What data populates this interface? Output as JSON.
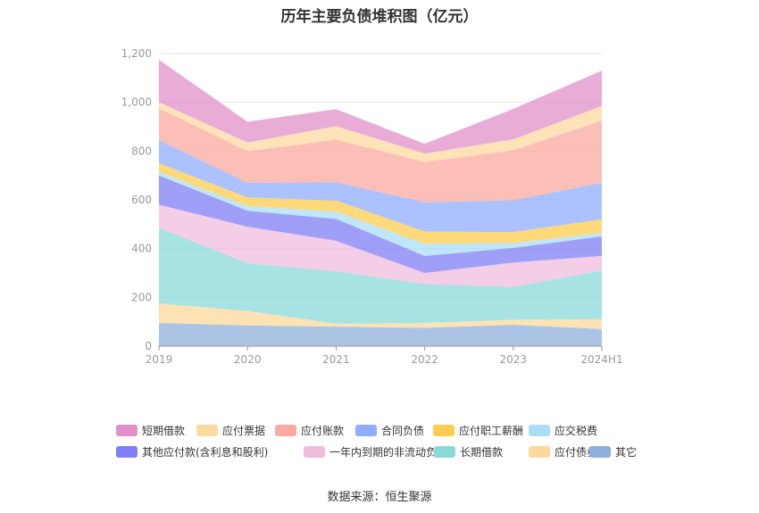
{
  "chart_data": {
    "type": "area",
    "stacked": true,
    "title": "历年主要负债堆积图（亿元）",
    "source": "数据来源：恒生聚源",
    "categories": [
      "2019",
      "2020",
      "2021",
      "2022",
      "2023",
      "2024H1"
    ],
    "yticks": [
      "0",
      "200",
      "400",
      "600",
      "800",
      "1,000",
      "1,200"
    ],
    "ylim": [
      0,
      1200
    ],
    "grid": true,
    "legend_position": "bottom",
    "series": [
      {
        "name": "其它",
        "color": "#8fafdc",
        "values": [
          95,
          85,
          80,
          75,
          88,
          70
        ]
      },
      {
        "name": "应付债券",
        "color": "#fcd99b",
        "values": [
          80,
          60,
          12,
          20,
          20,
          40
        ]
      },
      {
        "name": "长期借款",
        "color": "#8ad9d9",
        "values": [
          310,
          195,
          215,
          160,
          135,
          200
        ]
      },
      {
        "name": "一年内到期的非流动负债",
        "color": "#f0bcdd",
        "values": [
          95,
          150,
          125,
          45,
          100,
          60
        ]
      },
      {
        "name": "其他应付款(含利息和股利)",
        "color": "#7f7ff5",
        "values": [
          120,
          65,
          90,
          70,
          60,
          80
        ]
      },
      {
        "name": "应交税费",
        "color": "#a9def7",
        "values": [
          15,
          20,
          30,
          50,
          20,
          15
        ]
      },
      {
        "name": "应付职工薪酬",
        "color": "#ffcc4d",
        "values": [
          35,
          35,
          45,
          50,
          45,
          55
        ]
      },
      {
        "name": "合同负债",
        "color": "#8faeff",
        "values": [
          95,
          60,
          75,
          120,
          130,
          150
        ]
      },
      {
        "name": "应付账款",
        "color": "#fbaaa0",
        "values": [
          130,
          130,
          175,
          165,
          205,
          255
        ]
      },
      {
        "name": "应付票据",
        "color": "#fddaa0",
        "values": [
          25,
          35,
          55,
          35,
          45,
          60
        ]
      },
      {
        "name": "短期借款",
        "color": "#e090c8",
        "values": [
          175,
          85,
          70,
          40,
          125,
          145
        ]
      }
    ]
  }
}
